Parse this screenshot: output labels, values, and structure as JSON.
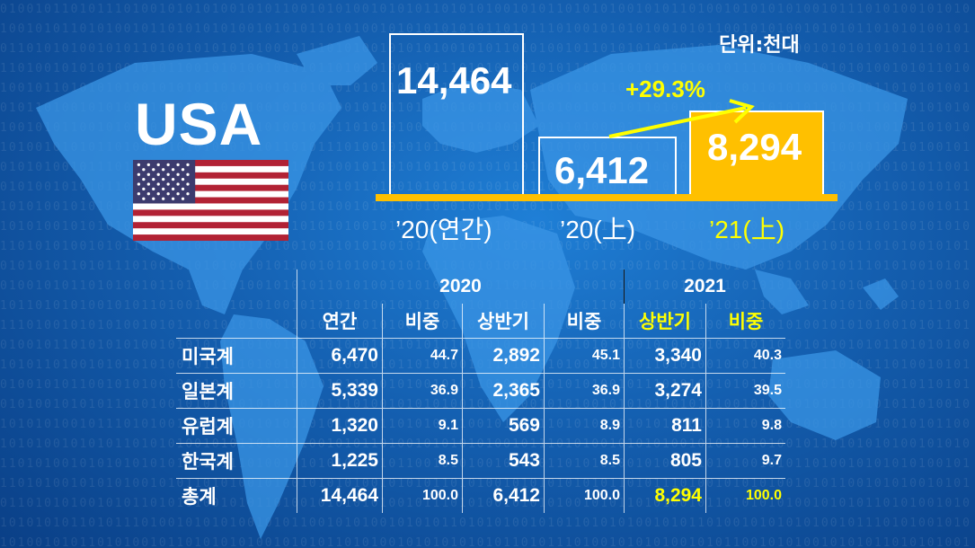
{
  "unit_label": "단위:천대",
  "country": "USA",
  "bars": [
    {
      "label": "’20(연간)",
      "value": "14,464",
      "highlight": false
    },
    {
      "label": "’20(上)",
      "value": "6,412",
      "highlight": false
    },
    {
      "label": "’21(上)",
      "value": "8,294",
      "highlight": true
    }
  ],
  "growth": "+29.3%",
  "colors": {
    "highlight": "#ffc000",
    "accent_text": "#ffff00",
    "background": "#145fb0"
  },
  "table": {
    "years": [
      "2020",
      "2021"
    ],
    "columns": [
      "연간",
      "비중",
      "상반기",
      "비중",
      "상반기",
      "비중"
    ],
    "rows": [
      {
        "label": "미국계",
        "cells": [
          "6,470",
          "44.7",
          "2,892",
          "45.1",
          "3,340",
          "40.3"
        ]
      },
      {
        "label": "일본계",
        "cells": [
          "5,339",
          "36.9",
          "2,365",
          "36.9",
          "3,274",
          "39.5"
        ]
      },
      {
        "label": "유럽계",
        "cells": [
          "1,320",
          "9.1",
          "569",
          "8.9",
          "811",
          "9.8"
        ]
      },
      {
        "label": "한국계",
        "cells": [
          "1,225",
          "8.5",
          "543",
          "8.5",
          "805",
          "9.7"
        ]
      },
      {
        "label": "총계",
        "cells": [
          "14,464",
          "100.0",
          "6,412",
          "100.0",
          "8,294",
          "100.0"
        ]
      }
    ]
  }
}
